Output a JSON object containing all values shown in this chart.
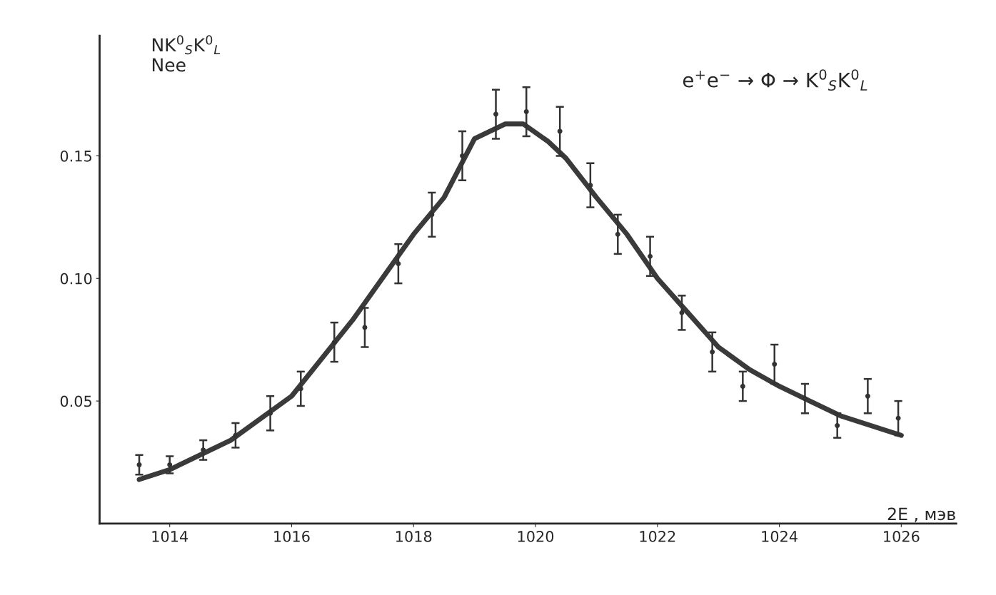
{
  "chart_data": {
    "type": "scatter",
    "xlabel": "2E , мэв",
    "ylabel": "NK$^{0}$$_{S}$K$^{0}$$_{L}$\nNee",
    "annotations": [
      "e$^{+}$e$^{−}$ → Φ → K$^{0}$$_{S}$K$^{0}$$_{L}$"
    ],
    "xlim": [
      1012.85,
      1026.9
    ],
    "ylim": [
      0,
      0.199
    ],
    "xticks": [
      1014,
      1016,
      1018,
      1020,
      1022,
      1024,
      1026
    ],
    "yticks": [
      {
        "value": 0.05,
        "label": "0.05"
      },
      {
        "value": 0.1,
        "label": "0.10"
      },
      {
        "value": 0.15,
        "label": "0.15"
      }
    ],
    "grid": false,
    "legend": false,
    "series": [
      {
        "color": "#333333",
        "marker": "circle",
        "x": [
          1013.5,
          1014.0,
          1014.55,
          1015.08,
          1015.65,
          1016.15,
          1016.7,
          1017.2,
          1017.75,
          1018.3,
          1018.8,
          1019.35,
          1019.85,
          1020.4,
          1020.9,
          1021.35,
          1021.88,
          1022.4,
          1022.9,
          1023.4,
          1023.92,
          1024.42,
          1024.95,
          1025.45,
          1025.95
        ],
        "values": [
          0.024,
          0.024,
          0.03,
          0.036,
          0.045,
          0.055,
          0.074,
          0.08,
          0.106,
          0.126,
          0.15,
          0.167,
          0.168,
          0.16,
          0.138,
          0.118,
          0.109,
          0.086,
          0.07,
          0.056,
          0.065,
          0.051,
          0.04,
          0.052,
          0.043
        ],
        "errors": [
          0.004,
          0.0035,
          0.004,
          0.005,
          0.007,
          0.007,
          0.008,
          0.008,
          0.008,
          0.009,
          0.01,
          0.01,
          0.01,
          0.01,
          0.009,
          0.008,
          0.008,
          0.007,
          0.008,
          0.006,
          0.008,
          0.006,
          0.005,
          0.007,
          0.007
        ]
      },
      {
        "type": "line",
        "color": "#3a3a3a",
        "line_style": "solid",
        "marker": "none",
        "x": [
          1013.5,
          1014,
          1015,
          1016,
          1017,
          1018,
          1018.5,
          1019,
          1019.5,
          1019.8,
          1020.2,
          1020.5,
          1021,
          1021.5,
          1022,
          1022.5,
          1023,
          1023.5,
          1024,
          1024.5,
          1025,
          1025.5,
          1026
        ],
        "values": [
          0.018,
          0.022,
          0.034,
          0.052,
          0.083,
          0.118,
          0.133,
          0.157,
          0.163,
          0.163,
          0.156,
          0.149,
          0.133,
          0.118,
          0.1,
          0.086,
          0.072,
          0.063,
          0.056,
          0.05,
          0.044,
          0.04,
          0.036
        ]
      }
    ]
  }
}
